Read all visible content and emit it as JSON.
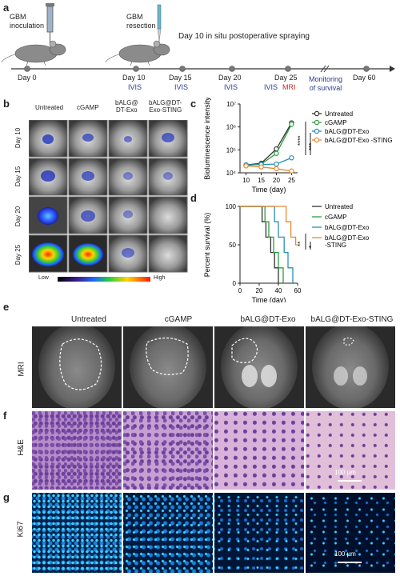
{
  "panels": {
    "a": "a",
    "b": "b",
    "c": "c",
    "d": "d",
    "e": "e",
    "f": "f",
    "g": "g"
  },
  "timeline": {
    "gbm_inoculation": [
      "GBM",
      "inoculation"
    ],
    "gbm_resection": [
      "GBM",
      "resection"
    ],
    "spray_note": "Day 10 in situ postoperative spraying",
    "days": [
      "Day 0",
      "Day 10",
      "Day 15",
      "Day 20",
      "Day 25",
      "Day 60"
    ],
    "ivis": "IVIS",
    "mri": "MRI",
    "monitoring": [
      "Monitoring",
      "of survival"
    ]
  },
  "imaging": {
    "groups": [
      [
        "Untreated"
      ],
      [
        "cGAMP"
      ],
      [
        "bALG@",
        "DT-Exo"
      ],
      [
        "bALG@DT-",
        "Exo-STING"
      ]
    ],
    "rows": [
      "Day 10",
      "Day 15",
      "Day 20",
      "Day 25"
    ],
    "scale_low": "Low",
    "scale_high": "High"
  },
  "chart_data": [
    {
      "type": "line",
      "ylabel": "Bioluminescence intensity",
      "xlabel": "Time (day)",
      "x": [
        10,
        15,
        20,
        25
      ],
      "xticks": [
        "10",
        "15",
        "20",
        "25"
      ],
      "yscale": "log",
      "ylim": [
        10000,
        10000000
      ],
      "yticks": [
        "10⁴",
        "10⁵",
        "10⁶",
        "10⁷"
      ],
      "series": [
        {
          "name": "Untreated",
          "color": "#333333",
          "values": [
            22000,
            26000,
            110000,
            1500000
          ]
        },
        {
          "name": "cGAMP",
          "color": "#2e9e3e",
          "values": [
            21000,
            24000,
            70000,
            1300000
          ]
        },
        {
          "name": "bALG@DT-Exo",
          "color": "#2a8fb5",
          "values": [
            22000,
            23000,
            24000,
            45000
          ]
        },
        {
          "name": "bALG@DT-Exo -STING",
          "color": "#e8892b",
          "values": [
            20000,
            18000,
            15000,
            12000
          ]
        }
      ],
      "significance": [
        "****",
        "***"
      ]
    },
    {
      "type": "line",
      "ylabel": "Percent survival (%)",
      "xlabel": "Time (day)",
      "xlim": [
        0,
        60
      ],
      "ylim": [
        0,
        100
      ],
      "xticks": [
        "0",
        "20",
        "40",
        "60"
      ],
      "yticks": [
        "0",
        "50",
        "100"
      ],
      "series": [
        {
          "name": "Untreated",
          "color": "#333333",
          "steps": [
            [
              0,
              100
            ],
            [
              23,
              100
            ],
            [
              23,
              80
            ],
            [
              27,
              80
            ],
            [
              27,
              60
            ],
            [
              32,
              60
            ],
            [
              32,
              40
            ],
            [
              36,
              40
            ],
            [
              36,
              20
            ],
            [
              40,
              20
            ],
            [
              40,
              0
            ]
          ]
        },
        {
          "name": "cGAMP",
          "color": "#2e9e3e",
          "steps": [
            [
              0,
              100
            ],
            [
              26,
              100
            ],
            [
              26,
              80
            ],
            [
              30,
              80
            ],
            [
              30,
              60
            ],
            [
              35,
              60
            ],
            [
              35,
              40
            ],
            [
              40,
              40
            ],
            [
              40,
              20
            ],
            [
              45,
              20
            ],
            [
              45,
              0
            ]
          ]
        },
        {
          "name": "bALG@DT-Exo",
          "color": "#2a8fb5",
          "steps": [
            [
              0,
              100
            ],
            [
              36,
              100
            ],
            [
              36,
              80
            ],
            [
              40,
              80
            ],
            [
              40,
              60
            ],
            [
              46,
              60
            ],
            [
              46,
              40
            ],
            [
              50,
              40
            ],
            [
              50,
              20
            ],
            [
              55,
              20
            ],
            [
              55,
              0
            ]
          ]
        },
        {
          "name": "bALG@DT-Exo -STING",
          "color": "#e8892b",
          "steps": [
            [
              0,
              100
            ],
            [
              48,
              100
            ],
            [
              48,
              80
            ],
            [
              53,
              80
            ],
            [
              53,
              60
            ],
            [
              58,
              60
            ],
            [
              58,
              50
            ],
            [
              60,
              50
            ]
          ]
        }
      ],
      "significance": [
        "**",
        "*"
      ]
    }
  ],
  "mri_section": {
    "row_label": "MRI",
    "cols": [
      "Untreated",
      "cGAMP",
      "bALG@DT-Exo",
      "bALG@DT-Exo-STING"
    ]
  },
  "he_section": {
    "row_label": "H&E",
    "scale": "100 µm"
  },
  "ki67_section": {
    "row_label": "Ki67",
    "scale": "100 µm"
  }
}
